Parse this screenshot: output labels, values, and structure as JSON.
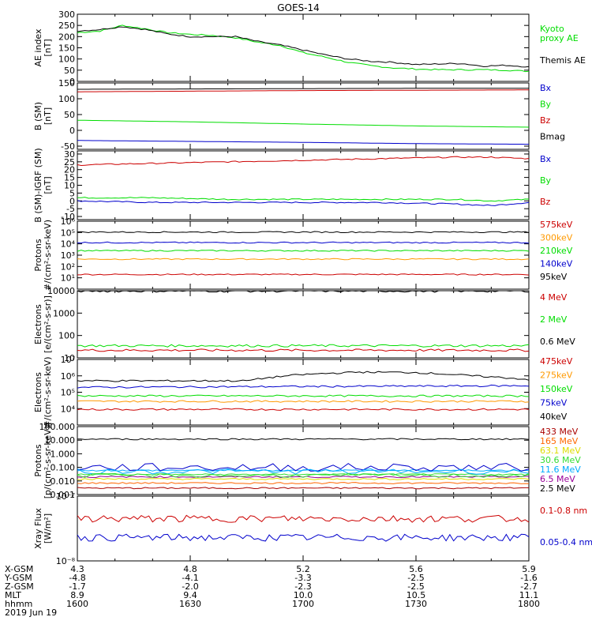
{
  "title": "GOES-14",
  "x_axis": {
    "ticks": [
      "1600",
      "1630",
      "1700",
      "1730",
      "1800"
    ],
    "rows": [
      {
        "name": "X-GSM",
        "values": [
          "4.3",
          "4.8",
          "5.2",
          "5.6",
          "5.9"
        ]
      },
      {
        "name": "Y-GSM",
        "values": [
          "-4.8",
          "-4.1",
          "-3.3",
          "-2.5",
          "-1.6"
        ]
      },
      {
        "name": "Z-GSM",
        "values": [
          "-1.7",
          "-2.0",
          "-2.3",
          "-2.5",
          "-2.7"
        ]
      },
      {
        "name": "MLT",
        "values": [
          "8.9",
          "9.4",
          "10.0",
          "10.5",
          "11.1"
        ]
      },
      {
        "name": "hhmm",
        "values": [
          "1600",
          "1630",
          "1700",
          "1730",
          "1800"
        ]
      }
    ],
    "date": "2019 Jun 19"
  },
  "colors": {
    "black": "#000000",
    "red": "#cc0000",
    "green": "#00dd00",
    "blue": "#0000cc",
    "orange": "#ff9900",
    "cyan": "#00aaff",
    "purple": "#990099",
    "darkred": "#aa0000",
    "lightgreen": "#33dd33",
    "yellow": "#dddd00"
  },
  "chart_data": [
    {
      "id": "ae",
      "type": "line",
      "ylabel": "AE index\n[nT]",
      "ylim": [
        0,
        300
      ],
      "scale": "linear",
      "yticks": [
        {
          "v": 0,
          "label": "0"
        },
        {
          "v": 50,
          "label": "50"
        },
        {
          "v": 100,
          "label": "100"
        },
        {
          "v": 150,
          "label": "150"
        },
        {
          "v": 200,
          "label": "200"
        },
        {
          "v": 250,
          "label": "250"
        },
        {
          "v": 300,
          "label": "300"
        }
      ],
      "series": [
        {
          "name": "Kyoto\nproxy AE",
          "color": "#00dd00",
          "points": [
            [
              0,
              218
            ],
            [
              6,
              225
            ],
            [
              12,
              250
            ],
            [
              18,
              235
            ],
            [
              24,
              218
            ],
            [
              30,
              210
            ],
            [
              36,
              205
            ],
            [
              42,
              195
            ],
            [
              48,
              175
            ],
            [
              54,
              160
            ],
            [
              60,
              128
            ],
            [
              66,
              108
            ],
            [
              72,
              85
            ],
            [
              78,
              70
            ],
            [
              84,
              60
            ],
            [
              90,
              55
            ],
            [
              96,
              52
            ],
            [
              102,
              52
            ],
            [
              108,
              52
            ],
            [
              114,
              50
            ],
            [
              120,
              45
            ]
          ]
        },
        {
          "name": "Themis AE",
          "color": "#000000",
          "points": [
            [
              0,
              225
            ],
            [
              6,
              232
            ],
            [
              12,
              245
            ],
            [
              18,
              232
            ],
            [
              24,
              212
            ],
            [
              30,
              200
            ],
            [
              36,
              200
            ],
            [
              42,
              200
            ],
            [
              48,
              178
            ],
            [
              54,
              162
            ],
            [
              60,
              140
            ],
            [
              66,
              118
            ],
            [
              72,
              100
            ],
            [
              78,
              90
            ],
            [
              84,
              85
            ],
            [
              90,
              75
            ],
            [
              96,
              78
            ],
            [
              102,
              80
            ],
            [
              108,
              68
            ],
            [
              114,
              72
            ],
            [
              120,
              65
            ]
          ]
        }
      ]
    },
    {
      "id": "b",
      "type": "line",
      "ylabel": "B (SM)\n[nT]",
      "ylim": [
        -60,
        150
      ],
      "scale": "linear",
      "yticks": [
        {
          "v": -50,
          "label": "-50"
        },
        {
          "v": 0,
          "label": "0"
        },
        {
          "v": 50,
          "label": "50"
        },
        {
          "v": 100,
          "label": "100"
        },
        {
          "v": 150,
          "label": "150"
        }
      ],
      "series": [
        {
          "name": "Bx",
          "color": "#0000cc",
          "points": [
            [
              0,
              -32
            ],
            [
              30,
              -35
            ],
            [
              60,
              -38
            ],
            [
              90,
              -42
            ],
            [
              120,
              -44
            ]
          ]
        },
        {
          "name": "By",
          "color": "#00dd00",
          "points": [
            [
              0,
              32
            ],
            [
              30,
              27
            ],
            [
              60,
              20
            ],
            [
              90,
              14
            ],
            [
              120,
              10
            ]
          ]
        },
        {
          "name": "Bz",
          "color": "#cc0000",
          "points": [
            [
              0,
              122
            ],
            [
              30,
              124
            ],
            [
              60,
              126
            ],
            [
              90,
              127
            ],
            [
              120,
              128
            ]
          ]
        },
        {
          "name": "Bmag",
          "color": "#000000",
          "points": [
            [
              0,
              130
            ],
            [
              30,
              131
            ],
            [
              60,
              132
            ],
            [
              90,
              133
            ],
            [
              120,
              133
            ]
          ]
        }
      ]
    },
    {
      "id": "bigrf",
      "type": "line",
      "ylabel": "B (SM)-IGRF (SM)\n[nT]",
      "ylim": [
        -12,
        32
      ],
      "scale": "linear",
      "yticks": [
        {
          "v": -10,
          "label": "-10"
        },
        {
          "v": -5,
          "label": "-5"
        },
        {
          "v": 0,
          "label": "0"
        },
        {
          "v": 5,
          "label": "5"
        },
        {
          "v": 10,
          "label": "10"
        },
        {
          "v": 15,
          "label": "15"
        },
        {
          "v": 20,
          "label": "20"
        },
        {
          "v": 25,
          "label": "25"
        },
        {
          "v": 30,
          "label": "30"
        }
      ],
      "series": [
        {
          "name": "Bx",
          "color": "#0000cc",
          "points": [
            [
              0,
              0
            ],
            [
              20,
              -1
            ],
            [
              40,
              -1
            ],
            [
              60,
              -1
            ],
            [
              80,
              -1
            ],
            [
              100,
              -2
            ],
            [
              110,
              -3
            ],
            [
              120,
              -1
            ]
          ]
        },
        {
          "name": "By",
          "color": "#00dd00",
          "points": [
            [
              0,
              2
            ],
            [
              20,
              2
            ],
            [
              40,
              1
            ],
            [
              60,
              1
            ],
            [
              80,
              1
            ],
            [
              100,
              1
            ],
            [
              110,
              0
            ],
            [
              120,
              1
            ]
          ]
        },
        {
          "name": "Bz",
          "color": "#cc0000",
          "points": [
            [
              0,
              23
            ],
            [
              20,
              24
            ],
            [
              40,
              25
            ],
            [
              60,
              26
            ],
            [
              80,
              27
            ],
            [
              100,
              28
            ],
            [
              110,
              28
            ],
            [
              120,
              27
            ]
          ]
        }
      ]
    },
    {
      "id": "prot1",
      "type": "line",
      "ylabel": "Protons\n#/(cm²-s-sr-keV)",
      "ylim": [
        1,
        1000000
      ],
      "scale": "log",
      "yticks": [
        {
          "v": 10,
          "label": "10¹"
        },
        {
          "v": 100,
          "label": "10²"
        },
        {
          "v": 1000,
          "label": "10³"
        },
        {
          "v": 10000,
          "label": "10⁴"
        },
        {
          "v": 100000,
          "label": "10⁵"
        },
        {
          "v": 1000000,
          "label": "10⁶"
        }
      ],
      "series": [
        {
          "name": "575keV",
          "color": "#cc0000",
          "points": [
            [
              0,
              20
            ],
            [
              120,
              20
            ]
          ]
        },
        {
          "name": "300keV",
          "color": "#ff9900",
          "points": [
            [
              0,
              450
            ],
            [
              120,
              450
            ]
          ]
        },
        {
          "name": "210keV",
          "color": "#00dd00",
          "points": [
            [
              0,
              2500
            ],
            [
              120,
              2500
            ]
          ]
        },
        {
          "name": "140keV",
          "color": "#0000cc",
          "points": [
            [
              0,
              13000
            ],
            [
              120,
              13000
            ]
          ]
        },
        {
          "name": "95keV",
          "color": "#000000",
          "points": [
            [
              0,
              110000
            ],
            [
              120,
              110000
            ]
          ]
        }
      ]
    },
    {
      "id": "elec1",
      "type": "line",
      "ylabel": "Electrons\n[e/(cm²-s-sr)]",
      "ylim": [
        10,
        10000
      ],
      "scale": "log",
      "yticks": [
        {
          "v": 10,
          "label": "10"
        },
        {
          "v": 100,
          "label": "100"
        },
        {
          "v": 1000,
          "label": "1000"
        },
        {
          "v": 10000,
          "label": "10000"
        }
      ],
      "series": [
        {
          "name": "4 MeV",
          "color": "#cc0000",
          "points": [
            [
              0,
              22
            ],
            [
              120,
              22
            ]
          ]
        },
        {
          "name": "2 MeV",
          "color": "#00dd00",
          "points": [
            [
              0,
              35
            ],
            [
              120,
              35
            ]
          ]
        },
        {
          "name": "0.6 MeV",
          "color": "#000000",
          "points": [
            [
              0,
              9800
            ],
            [
              120,
              9800
            ]
          ]
        }
      ]
    },
    {
      "id": "elec2",
      "type": "line",
      "ylabel": "Electrons\n#/(cm²-s-sr-keV)",
      "ylim": [
        1000,
        10000000
      ],
      "scale": "log",
      "yticks": [
        {
          "v": 10000,
          "label": "10⁴"
        },
        {
          "v": 100000,
          "label": "10⁵"
        },
        {
          "v": 1000000,
          "label": "10⁶"
        },
        {
          "v": 10000000,
          "label": "10⁷"
        }
      ],
      "series": [
        {
          "name": "475keV",
          "color": "#cc0000",
          "points": [
            [
              0,
              9000
            ],
            [
              120,
              9000
            ]
          ]
        },
        {
          "name": "275keV",
          "color": "#ff9900",
          "points": [
            [
              0,
              28000
            ],
            [
              120,
              28000
            ]
          ]
        },
        {
          "name": "150keV",
          "color": "#00dd00",
          "points": [
            [
              0,
              60000
            ],
            [
              120,
              60000
            ]
          ]
        },
        {
          "name": "75keV",
          "color": "#0000cc",
          "points": [
            [
              0,
              200000
            ],
            [
              120,
              250000
            ]
          ]
        },
        {
          "name": "40keV",
          "color": "#000000",
          "points": [
            [
              0,
              500000
            ],
            [
              30,
              500000
            ],
            [
              45,
              500000
            ],
            [
              60,
              1200000
            ],
            [
              75,
              1700000
            ],
            [
              90,
              1600000
            ],
            [
              105,
              1000000
            ],
            [
              120,
              600000
            ]
          ]
        }
      ]
    },
    {
      "id": "prot2",
      "type": "line",
      "ylabel": "Protons\n[p/(cm²-s-sr-keV)]",
      "ylim": [
        0.001,
        100
      ],
      "scale": "log",
      "yticks": [
        {
          "v": 0.001,
          "label": "0.001"
        },
        {
          "v": 0.01,
          "label": "0.010"
        },
        {
          "v": 0.1,
          "label": "0.100"
        },
        {
          "v": 1,
          "label": "1.000"
        },
        {
          "v": 10,
          "label": "10.000"
        },
        {
          "v": 100,
          "label": "100.000"
        }
      ],
      "series": [
        {
          "name": "433 MeV",
          "color": "#aa0000",
          "points": [
            [
              0,
              0.003
            ],
            [
              120,
              0.003
            ]
          ]
        },
        {
          "name": "165 MeV",
          "color": "#ff6600",
          "points": [
            [
              0,
              0.007
            ],
            [
              120,
              0.007
            ]
          ]
        },
        {
          "name": "63.1 MeV",
          "color": "#dddd00",
          "points": [
            [
              0,
              0.014
            ],
            [
              120,
              0.014
            ]
          ]
        },
        {
          "name": "30.6 MeV",
          "color": "#33dd33",
          "points": [
            [
              0,
              0.03
            ],
            [
              120,
              0.03
            ]
          ]
        },
        {
          "name": "11.6 MeV",
          "color": "#00aaff",
          "points": [
            [
              0,
              0.06
            ],
            [
              120,
              0.06
            ]
          ]
        },
        {
          "name": "6.5 MeV",
          "color": "#990099",
          "points": [
            [
              0,
              0.02
            ],
            [
              120,
              0.02
            ]
          ]
        },
        {
          "name": "2.5 MeV",
          "color": "#000000",
          "points": [
            [
              0,
              12
            ],
            [
              120,
              12
            ]
          ]
        }
      ],
      "noisy_series": [
        {
          "name": "blue",
          "color": "#0000cc",
          "base": 0.1,
          "amp": 0.6
        },
        {
          "name": "cyan",
          "color": "#00aaff",
          "base": 0.05,
          "amp": 0.4
        },
        {
          "name": "green",
          "color": "#33dd33",
          "base": 0.025,
          "amp": 0.3
        }
      ]
    },
    {
      "id": "xray",
      "type": "line",
      "ylabel": "Xray Flux\n[W/m²]",
      "ylim": [
        1e-08,
        1e-07
      ],
      "scale": "log",
      "yticks": [
        {
          "v": 1e-08,
          "label": "10⁻⁸"
        },
        {
          "v": 1e-07,
          "label": "10⁻⁷"
        }
      ],
      "series": [
        {
          "name": "0.1-0.8 nm",
          "color": "#cc0000",
          "points": [
            [
              0,
              4.5e-08
            ],
            [
              120,
              4.5e-08
            ]
          ]
        },
        {
          "name": "0.05-0.4 nm",
          "color": "#0000cc",
          "points": [
            [
              0,
              2.3e-08
            ],
            [
              120,
              2.3e-08
            ]
          ]
        }
      ]
    }
  ]
}
